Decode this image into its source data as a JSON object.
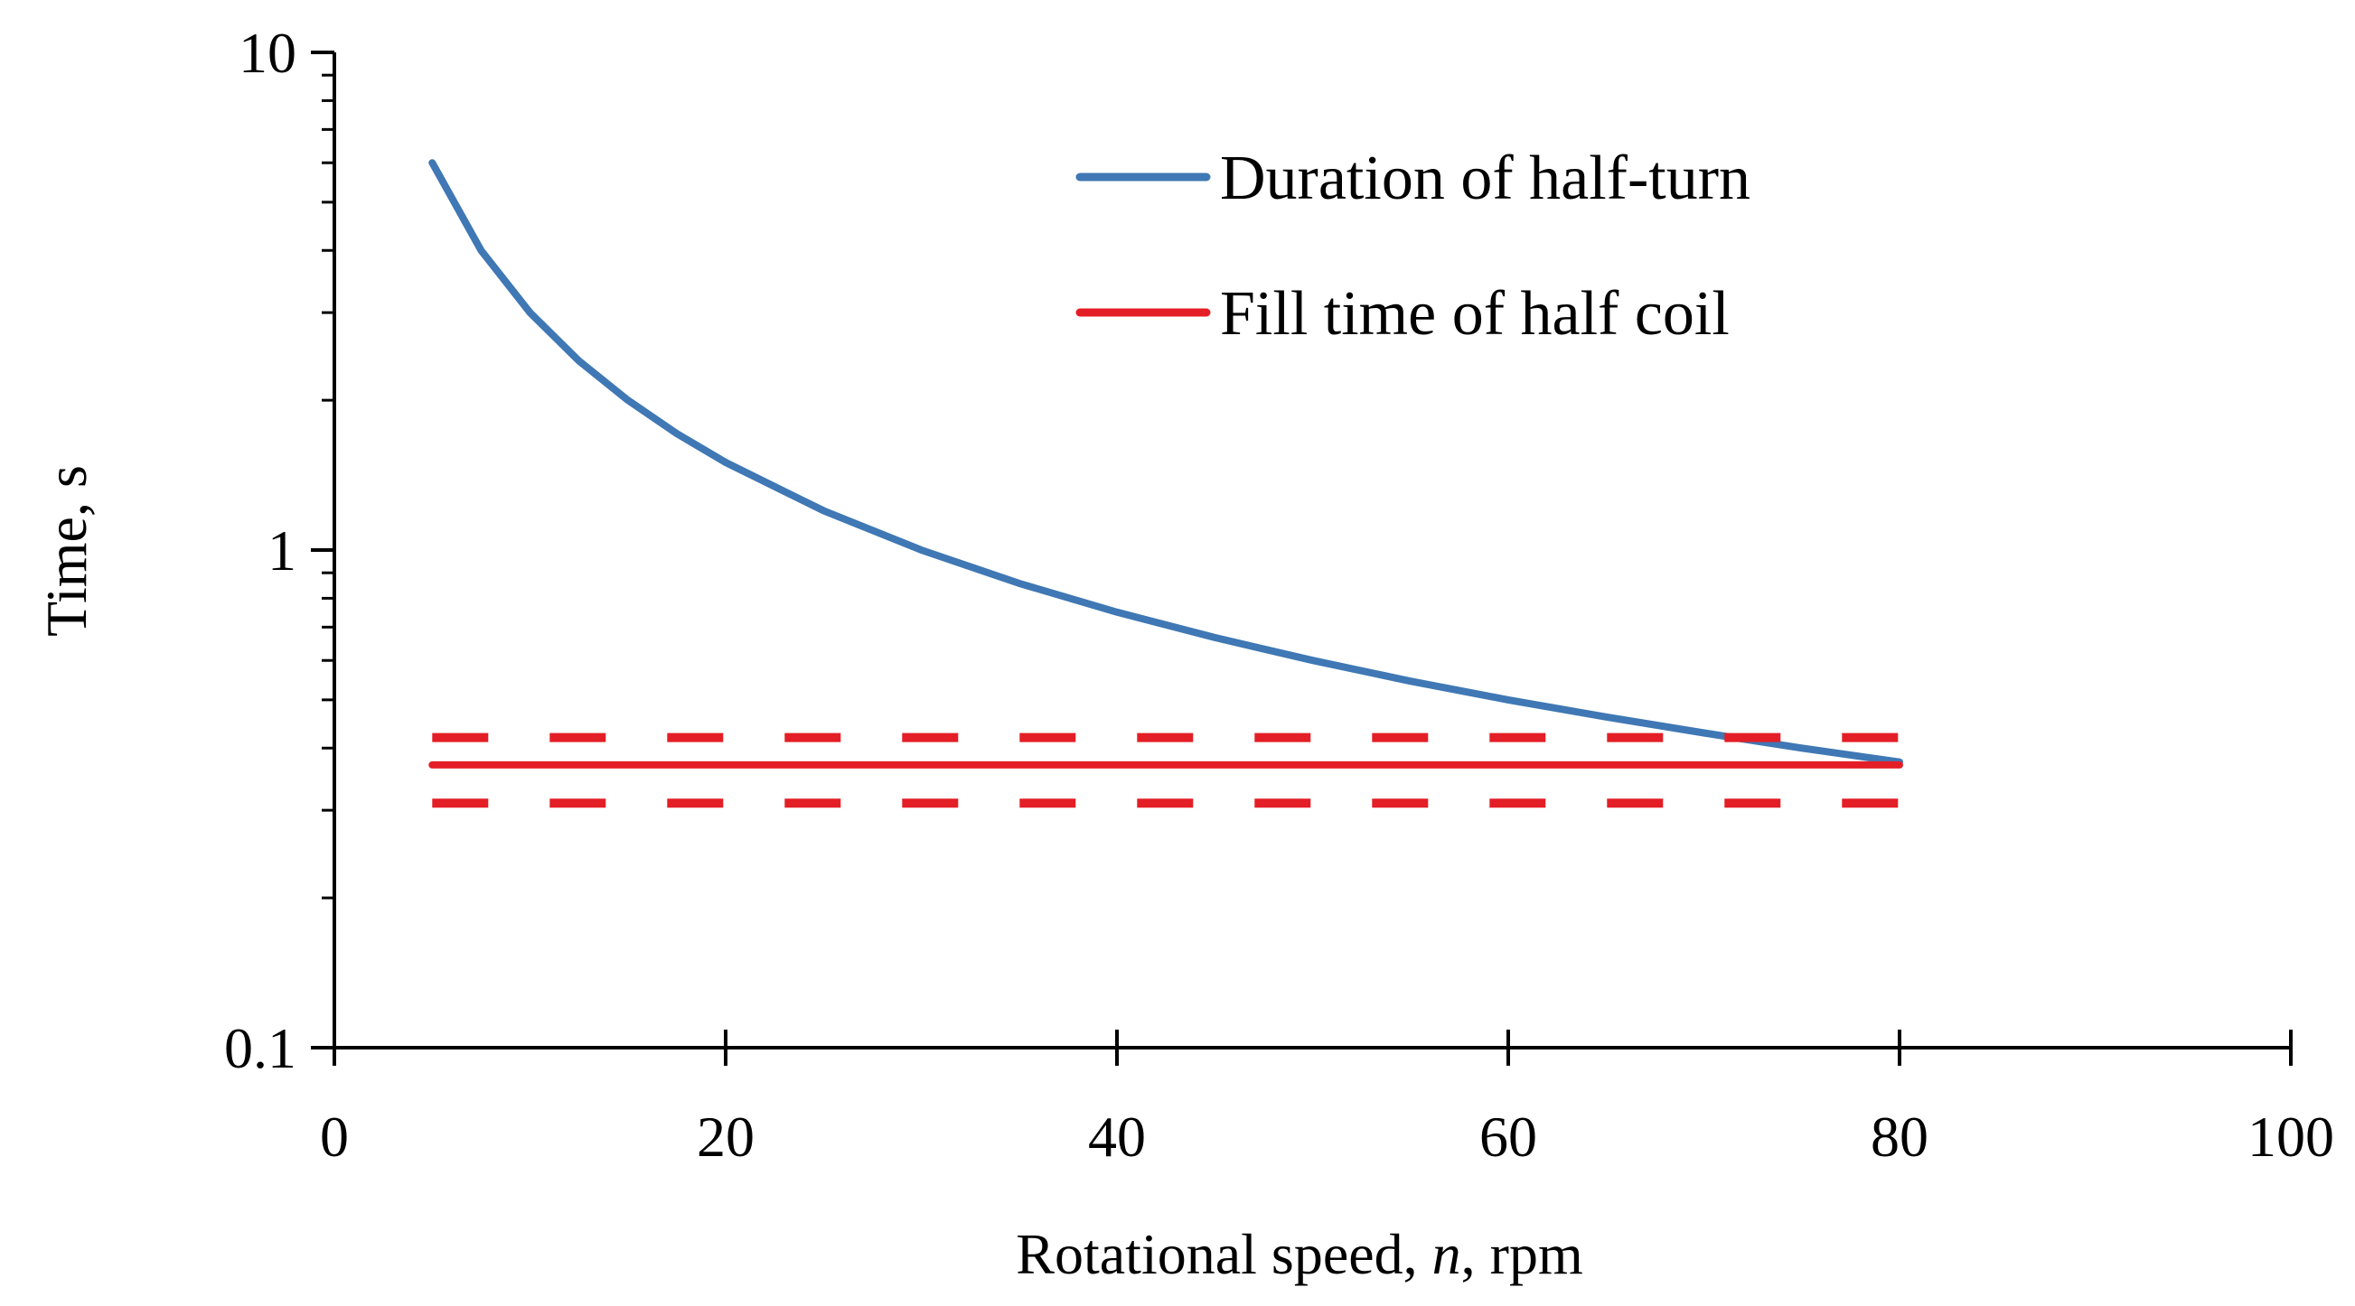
{
  "chart_data": {
    "type": "line",
    "title": "",
    "xlabel": {
      "prefix": "Rotational speed, ",
      "symbol": "n",
      "suffix": ", rpm"
    },
    "ylabel": "Time, s",
    "xlim": [
      0,
      100
    ],
    "ylim": [
      0.1,
      10
    ],
    "yscale": "log",
    "xticks": [
      0,
      20,
      40,
      60,
      80,
      100
    ],
    "xtick_labels": [
      "0",
      "20",
      "40",
      "60",
      "80",
      "100"
    ],
    "yticks_major": [
      0.1,
      1,
      10
    ],
    "ytick_labels": [
      "0.1",
      "1",
      "10"
    ],
    "yticks_minor": [
      0.2,
      0.3,
      0.4,
      0.5,
      0.6,
      0.7,
      0.8,
      0.9,
      2,
      3,
      4,
      5,
      6,
      7,
      8,
      9
    ],
    "grid": false,
    "legend_position": "top-right",
    "series": [
      {
        "name": "Duration of half-turn",
        "color": "#3f78b4",
        "style": "solid",
        "x": [
          5,
          7.5,
          10,
          12.5,
          15,
          17.5,
          20,
          25,
          30,
          35,
          40,
          45,
          50,
          55,
          60,
          65,
          70,
          75,
          80
        ],
        "y": [
          6.0,
          4.0,
          3.0,
          2.4,
          2.0,
          1.714,
          1.5,
          1.2,
          1.0,
          0.857,
          0.75,
          0.667,
          0.6,
          0.545,
          0.5,
          0.462,
          0.429,
          0.4,
          0.375
        ]
      },
      {
        "name": "Fill time of half coil",
        "color": "#e41e26",
        "style": "solid",
        "x": [
          5,
          80
        ],
        "y": [
          0.37,
          0.37
        ]
      },
      {
        "name": "Fill time of half coil (upper bound)",
        "color": "#e41e26",
        "style": "dashed",
        "legend": false,
        "x": [
          5,
          80
        ],
        "y": [
          0.42,
          0.42
        ]
      },
      {
        "name": "Fill time of half coil (lower bound)",
        "color": "#e41e26",
        "style": "dashed",
        "legend": false,
        "x": [
          5,
          80
        ],
        "y": [
          0.31,
          0.31
        ]
      }
    ]
  }
}
